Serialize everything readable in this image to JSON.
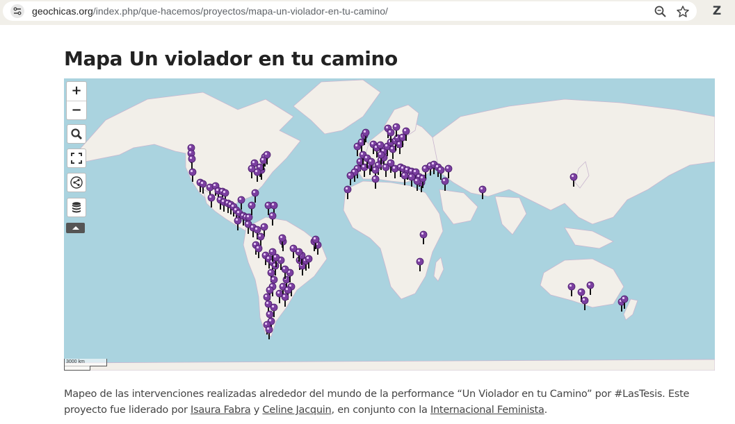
{
  "browser": {
    "url_domain": "geochicas.org",
    "url_path": "/index.php/que-hacemos/proyectos/mapa-un-violador-en-tu-camino/",
    "extension_letter": "Z"
  },
  "page": {
    "title": "Mapa Un violador en tu camino"
  },
  "map": {
    "zoom_in_label": "+",
    "zoom_out_label": "−",
    "scale_label": "3000 km",
    "land_color": "#f2efe9",
    "water_color": "#aad3df",
    "marker_color": "#7b3fa0"
  },
  "description": {
    "text_1": "Mapeo de las intervenciones realizadas alrededor del mundo de la performance “Un Violador en tu Camino” por #LasTesis. Este proyecto fue liderado por ",
    "link_1": "Isaura Fabra",
    "text_2": " y ",
    "link_2": "Celine Jacquin",
    "text_3": ", en conjunto con la ",
    "link_3": "Internacional Feminista",
    "text_4": "."
  }
}
